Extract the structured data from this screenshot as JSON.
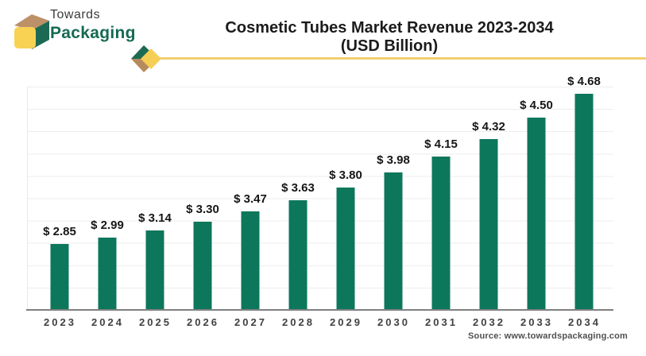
{
  "brand": {
    "name_top": "Towards",
    "name_bottom": "Packaging",
    "logo_colors": {
      "top_face": "#bd9168",
      "side_face": "#1d6a54",
      "front_face": "#f8d253"
    }
  },
  "header": {
    "title_line1": "Cosmetic Tubes Market Revenue 2023-2034",
    "title_line2": "(USD Billion)",
    "accent_line_color": "#f2cf6f",
    "accent_diamond_colors": {
      "green": "#1d6a54",
      "tan": "#b58a5c",
      "yellow": "#f5ce55"
    }
  },
  "footer": {
    "source": "Source: www.towardspackaging.com"
  },
  "chart_data": {
    "type": "bar",
    "title": "Cosmetic Tubes Market Revenue 2023-2034 (USD Billion)",
    "categories": [
      "2023",
      "2024",
      "2025",
      "2026",
      "2027",
      "2028",
      "2029",
      "2030",
      "2031",
      "2032",
      "2033",
      "2034"
    ],
    "values": [
      2.85,
      2.99,
      3.14,
      3.3,
      3.47,
      3.63,
      3.8,
      3.98,
      4.15,
      4.32,
      4.5,
      4.68
    ],
    "value_prefix": "$ ",
    "unit": "USD Billion",
    "bar_color": "#0d775c",
    "grid": true,
    "gridline_color": "#ededed",
    "axis_color": "#808080",
    "legend_position": "none"
  }
}
